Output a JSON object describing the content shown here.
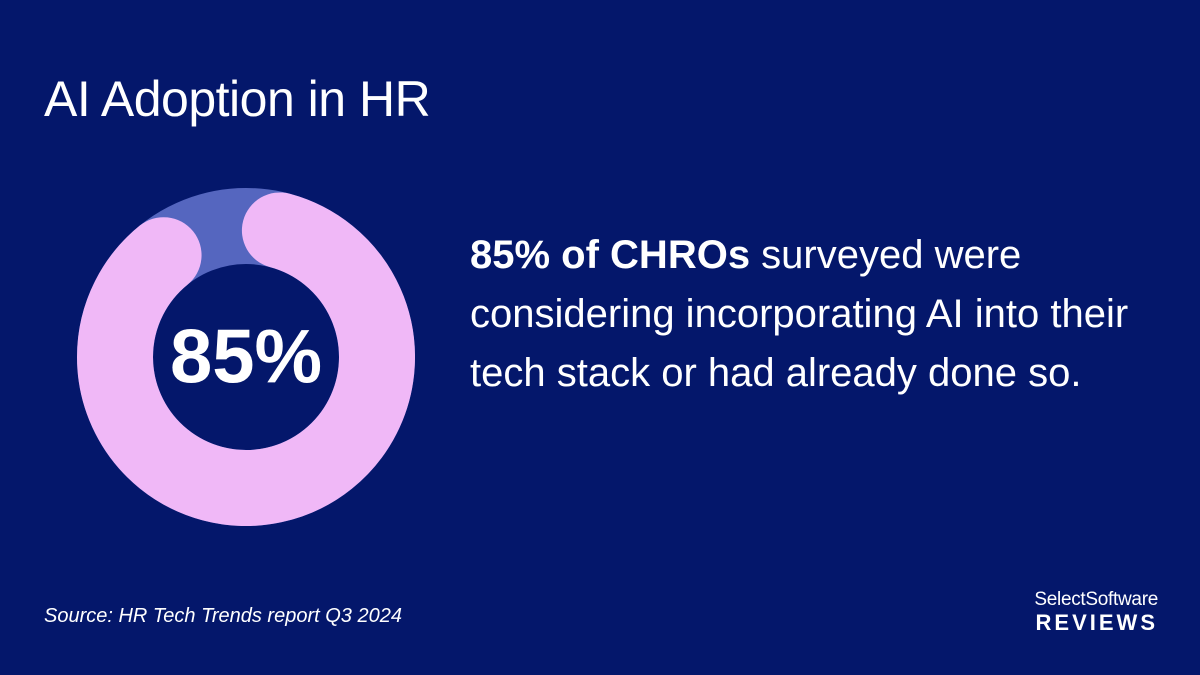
{
  "title": "AI Adoption in HR",
  "chart_data": {
    "type": "pie",
    "variant": "donut",
    "center_label": "85%",
    "slices": [
      {
        "value": 85,
        "color": "#f0b8f7"
      },
      {
        "value": 15,
        "color": "#5566bf"
      }
    ]
  },
  "statement": {
    "highlight": "85% of CHROs",
    "rest": " surveyed were considering incorporating AI into their tech stack or had already done so."
  },
  "source": "Source: HR Tech Trends report Q3 2024",
  "logo": {
    "top": "SelectSoftware",
    "bottom": "REVIEWS"
  },
  "colors": {
    "background": "#04176b",
    "accent": "#f0b8f7",
    "remainder": "#5566bf",
    "text": "#ffffff"
  }
}
